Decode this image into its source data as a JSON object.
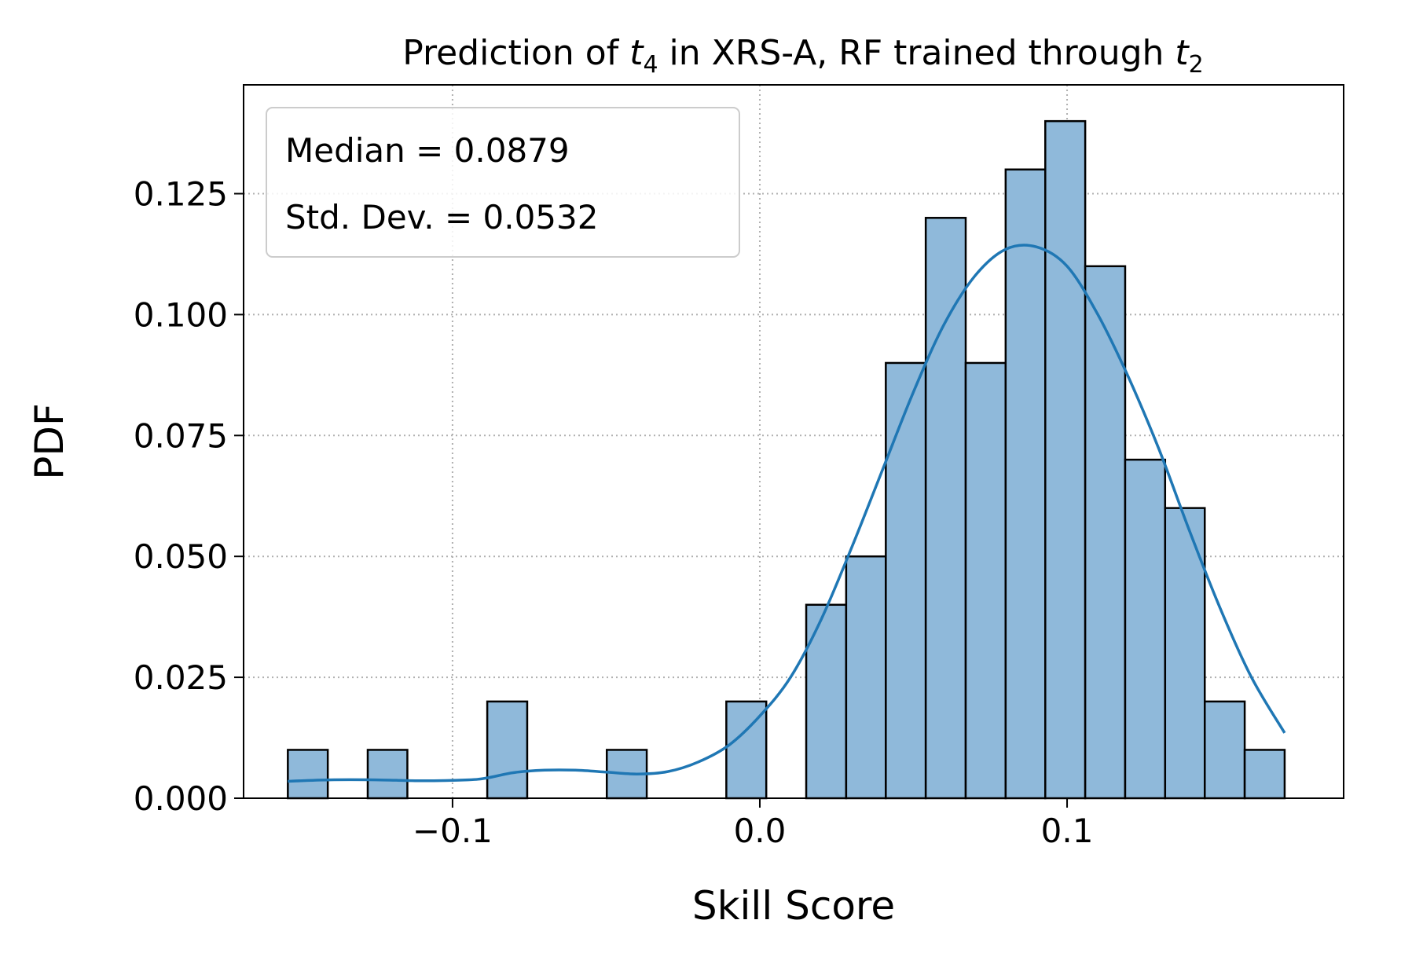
{
  "chart_data": {
    "type": "bar",
    "title": {
      "prefix": "Prediction of ",
      "var1": "t",
      "sub1": "4",
      "middle": " in XRS-A, RF trained through ",
      "var2": "t",
      "sub2": "2"
    },
    "xlabel": "Skill Score",
    "ylabel": "PDF",
    "xlim": [
      -0.168,
      0.19
    ],
    "ylim": [
      0,
      0.1475
    ],
    "xticks": [
      -0.1,
      0.0,
      0.1
    ],
    "xtick_labels": [
      "−0.1",
      "0.0",
      "0.1"
    ],
    "yticks": [
      0,
      0.025,
      0.05,
      0.075,
      0.1,
      0.125
    ],
    "ytick_labels": [
      "0.000",
      "0.025",
      "0.050",
      "0.075",
      "0.100",
      "0.125"
    ],
    "grid": true,
    "legend_placement": "upper-left",
    "annotations": [
      "Median = 0.0879",
      "Std. Dev. = 0.0532"
    ],
    "bin_edges": [
      -0.1536,
      -0.1406,
      -0.1276,
      -0.1147,
      -0.1017,
      -0.0887,
      -0.0757,
      -0.0628,
      -0.0498,
      -0.0368,
      -0.0238,
      -0.0109,
      0.0021,
      0.0151,
      0.0281,
      0.041,
      0.054,
      0.067,
      0.08,
      0.0929,
      0.1059,
      0.1189,
      0.1319,
      0.1448,
      0.1578,
      0.1708
    ],
    "values": [
      0.01,
      0,
      0.01,
      0,
      0,
      0.02,
      0,
      0,
      0.01,
      0,
      0,
      0.02,
      0,
      0.04,
      0.05,
      0.09,
      0.12,
      0.09,
      0.13,
      0.14,
      0.11,
      0.07,
      0.06,
      0.02,
      0.01
    ],
    "kde": {
      "x": [
        -0.1536,
        -0.14,
        -0.125,
        -0.11,
        -0.095,
        -0.0887,
        -0.08,
        -0.07,
        -0.06,
        -0.05,
        -0.04,
        -0.03,
        -0.02,
        -0.01,
        0.0,
        0.01,
        0.02,
        0.03,
        0.04,
        0.05,
        0.06,
        0.07,
        0.08,
        0.09,
        0.1,
        0.11,
        0.12,
        0.13,
        0.14,
        0.15,
        0.16,
        0.1708
      ],
      "y": [
        0.0035,
        0.0038,
        0.0038,
        0.0036,
        0.0038,
        0.0042,
        0.0053,
        0.0058,
        0.0058,
        0.0054,
        0.005,
        0.0055,
        0.0075,
        0.011,
        0.017,
        0.025,
        0.037,
        0.052,
        0.068,
        0.084,
        0.098,
        0.108,
        0.1135,
        0.114,
        0.11,
        0.1,
        0.087,
        0.072,
        0.055,
        0.039,
        0.025,
        0.0135
      ]
    },
    "colors": {
      "bar_fill": "#8fb9da",
      "bar_edge": "#000000",
      "kde_line": "#1f77b4",
      "grid": "#b0b0b0",
      "legend_border": "#cccccc"
    }
  }
}
